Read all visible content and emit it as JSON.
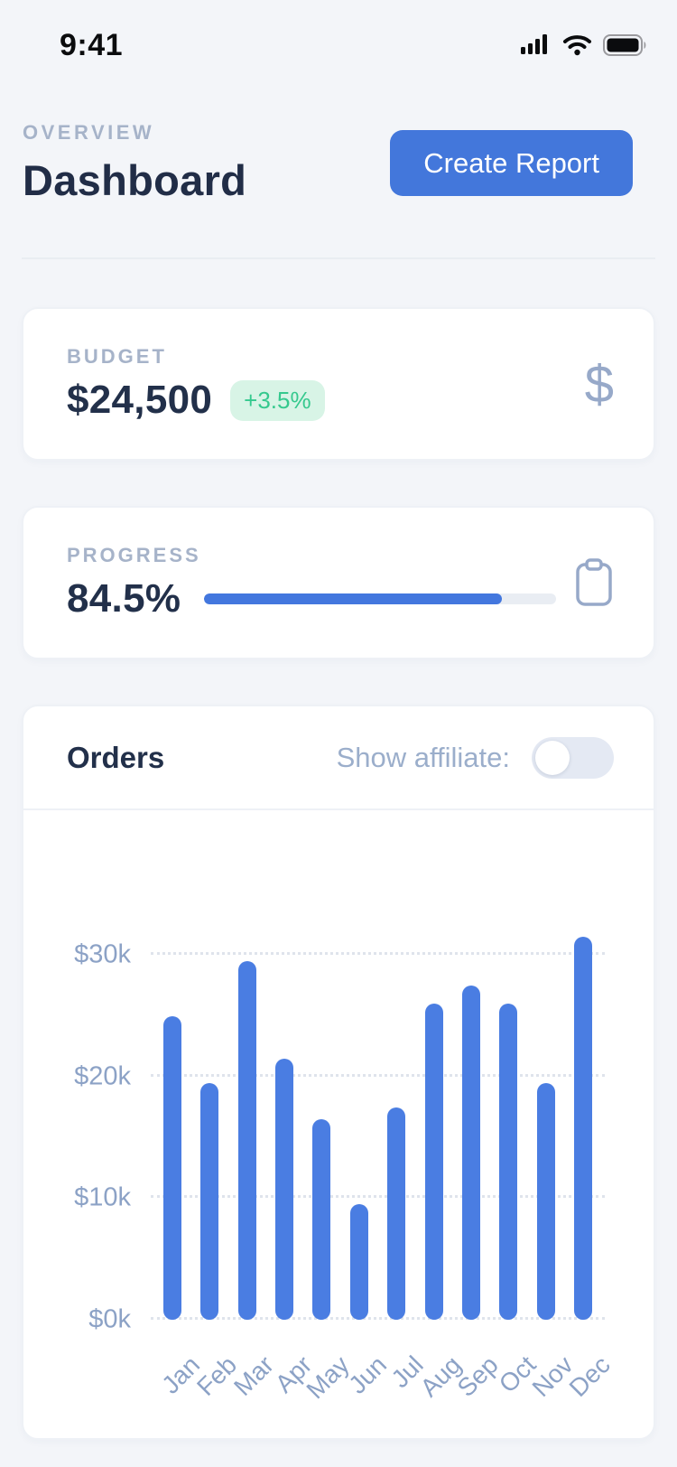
{
  "status_bar": {
    "time": "9:41"
  },
  "header": {
    "eyebrow": "OVERVIEW",
    "title": "Dashboard",
    "cta_label": "Create Report"
  },
  "budget_card": {
    "label": "BUDGET",
    "value": "$24,500",
    "delta": "+3.5%",
    "icon": "dollar-icon",
    "dollar_glyph": "$"
  },
  "progress_card": {
    "label": "PROGRESS",
    "value": "84.5%",
    "percent": 84.5,
    "icon": "clipboard-icon"
  },
  "orders_card": {
    "title": "Orders",
    "toggle_label": "Show affiliate:",
    "toggle_on": false
  },
  "chart_data": {
    "type": "bar",
    "title": "Orders",
    "categories": [
      "Jan",
      "Feb",
      "Mar",
      "Apr",
      "May",
      "Jun",
      "Jul",
      "Aug",
      "Sep",
      "Oct",
      "Nov",
      "Dec"
    ],
    "values": [
      25,
      19.5,
      29.5,
      21.5,
      16.5,
      9.5,
      17.5,
      26,
      27.5,
      26,
      19.5,
      31.5
    ],
    "unit": "thousand dollars",
    "xlabel": "",
    "ylabel": "",
    "y_ticks": [
      {
        "value": 0,
        "label": "$0k"
      },
      {
        "value": 10,
        "label": "$10k"
      },
      {
        "value": 20,
        "label": "$20k"
      },
      {
        "value": 30,
        "label": "$30k"
      }
    ],
    "ylim": [
      0,
      33
    ],
    "grid": "horizontal-dotted",
    "legend": "none",
    "bar_color": "#4A7DE2"
  },
  "colors": {
    "background": "#F3F5F9",
    "card": "#FFFFFF",
    "navy_text": "#22304A",
    "muted_label": "#A6B3C9",
    "button_blue": "#4377DB",
    "bar_blue": "#4A7DE2",
    "green_text": "#35C98E",
    "green_bg": "#D8F4E6",
    "axis_text": "#8CA2C6",
    "toggle_track": "#E4E9F3",
    "progress_track": "#E9EDF3"
  }
}
